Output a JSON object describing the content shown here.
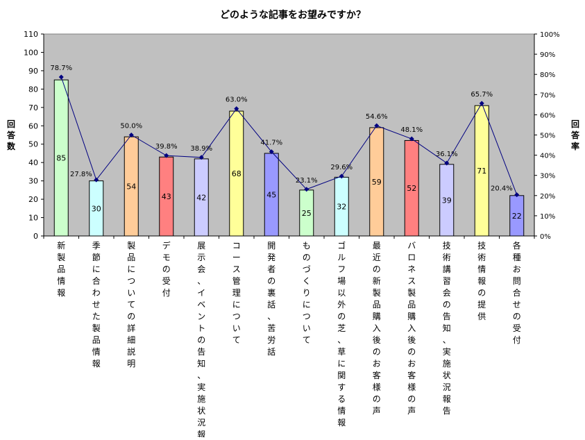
{
  "chart_data": {
    "type": "bar",
    "title": "どのような記事をお望みですか？",
    "ylabel_left": "回答数",
    "ylabel_right": "回答率",
    "ylim_left": [
      0,
      110
    ],
    "ylim_right": [
      0,
      100
    ],
    "left_ticks": [
      0,
      10,
      20,
      30,
      40,
      50,
      60,
      70,
      80,
      90,
      100,
      110
    ],
    "right_ticks": [
      "0%",
      "10%",
      "20%",
      "30%",
      "40%",
      "50%",
      "60%",
      "70%",
      "80%",
      "90%",
      "100%"
    ],
    "grid": false,
    "plot_background": "#c0c0c0",
    "categories": [
      "新製品情報",
      "季節に合わせた製品情報",
      "製品についての詳細説明",
      "デモの受付",
      "展示会、イベントの告知、実施状況報告",
      "コース管理について",
      "開発者の裏話、苦労話",
      "ものづくりについて",
      "ゴルフ場以外の芝、草に関する情報",
      "最近の新製品購入後のお客様の声",
      "バロネス製品購入後のお客様の声",
      "技術講習会の告知、実施状況報告",
      "技術情報の提供",
      "各種お問合せの受付"
    ],
    "series": [
      {
        "type": "bar",
        "values": [
          85,
          30,
          54,
          43,
          42,
          68,
          45,
          25,
          32,
          59,
          52,
          39,
          71,
          22
        ],
        "colors": [
          "#ccffcc",
          "#ccffff",
          "#ffcc99",
          "#ff8080",
          "#ccccff",
          "#ffff99",
          "#9999ff",
          "#ccffcc",
          "#ccffff",
          "#ffcc99",
          "#ff8080",
          "#ccccff",
          "#ffff99",
          "#9999ff"
        ]
      },
      {
        "type": "line",
        "axis": "right",
        "color": "#000080",
        "values": [
          78.7,
          27.8,
          50.0,
          39.8,
          38.9,
          63.0,
          41.7,
          23.1,
          29.6,
          54.6,
          48.1,
          36.1,
          65.7,
          20.4
        ],
        "labels": [
          "78.7%",
          "27.8%",
          "50.0%",
          "39.8%",
          "38.9%",
          "63.0%",
          "41.7%",
          "23.1%",
          "29.6%",
          "54.6%",
          "48.1%",
          "36.1%",
          "65.7%",
          "20.4%"
        ]
      }
    ]
  }
}
